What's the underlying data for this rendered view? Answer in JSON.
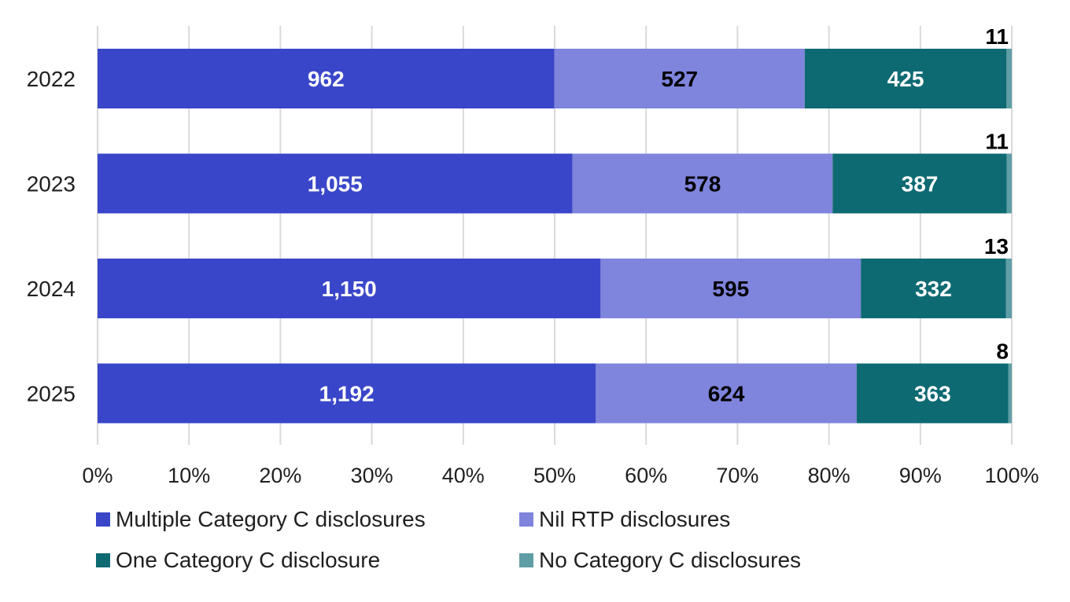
{
  "chart_data": {
    "type": "bar",
    "orientation": "horizontal",
    "stacking": "percent",
    "categories": [
      "2022",
      "2023",
      "2024",
      "2025"
    ],
    "series": [
      {
        "name": "Multiple Category C disclosures",
        "color": "#3a46c9",
        "label_color": "#ffffff",
        "values": [
          962,
          1055,
          1150,
          1192
        ],
        "labels": [
          "962",
          "1,055",
          "1,150",
          "1,192"
        ]
      },
      {
        "name": "Nil RTP disclosures",
        "color": "#7f84dc",
        "label_color": "#000000",
        "values": [
          527,
          578,
          595,
          624
        ],
        "labels": [
          "527",
          "578",
          "595",
          "624"
        ]
      },
      {
        "name": "One Category C disclosure",
        "color": "#0e6a72",
        "label_color": "#ffffff",
        "values": [
          425,
          387,
          332,
          363
        ],
        "labels": [
          "425",
          "387",
          "332",
          "363"
        ]
      },
      {
        "name": "No Category C disclosures",
        "color": "#5f9ea5",
        "label_color": "#000000",
        "values": [
          11,
          11,
          13,
          8
        ],
        "labels": [
          "11",
          "11",
          "13",
          "8"
        ]
      }
    ],
    "x_ticks": [
      "0%",
      "10%",
      "20%",
      "30%",
      "40%",
      "50%",
      "60%",
      "70%",
      "80%",
      "90%",
      "100%"
    ],
    "xlim": [
      0,
      100
    ],
    "grid": "vertical",
    "legend_position": "bottom",
    "title": "",
    "xlabel": "",
    "ylabel": ""
  }
}
